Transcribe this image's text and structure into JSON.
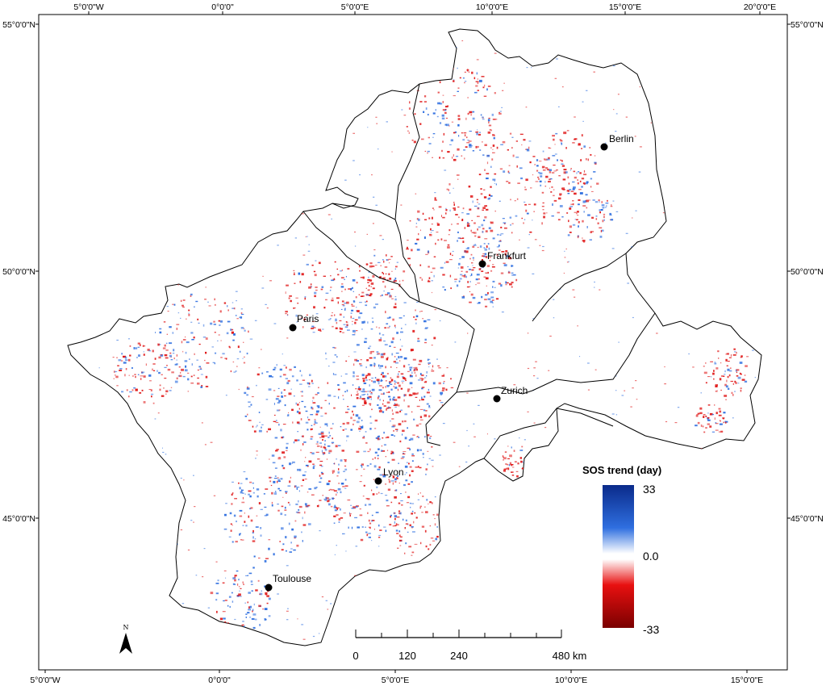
{
  "map": {
    "graticule": {
      "top_labels": [
        "5°0'0\"W",
        "0°0'0\"",
        "5°0'0\"E",
        "10°0'0\"E",
        "15°0'0\"E",
        "20°0'0\"E"
      ],
      "bottom_labels": [
        "5°0'0\"W",
        "0°0'0\"",
        "5°0'0\"E",
        "10°0'0\"E",
        "15°0'0\"E"
      ],
      "left_labels": [
        "55°0'0\"N",
        "50°0'0\"N",
        "45°0'0\"N"
      ],
      "right_labels": [
        "55°0'0\"N",
        "50°0'0\"N",
        "45°0'0\"N"
      ]
    },
    "cities": [
      {
        "name": "Berlin"
      },
      {
        "name": "Frankfurt"
      },
      {
        "name": "Paris"
      },
      {
        "name": "Zurich"
      },
      {
        "name": "Lyon"
      },
      {
        "name": "Toulouse"
      }
    ],
    "legend": {
      "title": "SOS trend (day)",
      "max_label": "33",
      "mid_label": "0.0",
      "min_label": "-33",
      "colors": {
        "high": "#0a2a8a",
        "mid_blue": "#2f6fe0",
        "neutral": "#ffffff",
        "mid_red": "#e81010",
        "low": "#7a0000"
      }
    },
    "scale_bar": {
      "labels": [
        "0",
        "120",
        "240",
        "480 km"
      ]
    },
    "north_arrow": {
      "label": "N"
    },
    "colors": {
      "increase": "#2f6fe0",
      "decrease": "#e01818",
      "border": "#000000"
    }
  }
}
